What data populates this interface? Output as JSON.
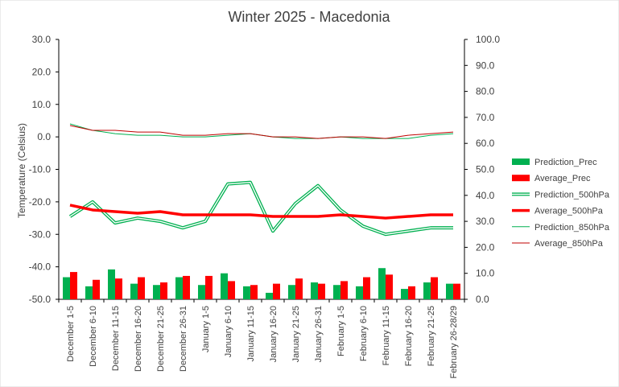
{
  "chart_data": {
    "type": "bar",
    "title": "Winter 2025 - Macedonia",
    "ylabel": "Temperature (Celsius)",
    "ylim": [
      -50,
      30
    ],
    "y_ticks": [
      "30.0",
      "20.0",
      "10.0",
      "0.0",
      "-10.0",
      "-20.0",
      "-30.0",
      "-40.0",
      "-50.0"
    ],
    "y2lim": [
      0,
      100
    ],
    "y2_ticks": [
      "100.0",
      "90.0",
      "80.0",
      "70.0",
      "60.0",
      "50.0",
      "40.0",
      "30.0",
      "20.0",
      "10.0",
      "0.0"
    ],
    "grid": false,
    "legend_position": "right",
    "categories": [
      "December 1-5",
      "December 6-10",
      "December 11-15",
      "December 16-20",
      "December 21-25",
      "December 26-31",
      "January 1-5",
      "January 6-10",
      "January 11-15",
      "January 16-20",
      "January 21-25",
      "January 26-31",
      "February 1-5",
      "February 6-10",
      "February 11-15",
      "February 16-20",
      "February 21-25",
      "February 26-28/29"
    ],
    "series": [
      {
        "name": "Prediction_Prec",
        "kind": "bar",
        "axis": "right",
        "color": "#00b050",
        "values": [
          8.5,
          5.0,
          11.5,
          6.0,
          5.5,
          8.5,
          5.5,
          10.0,
          5.0,
          2.5,
          5.5,
          6.5,
          5.5,
          5.0,
          12.0,
          4.0,
          6.5,
          6.0
        ]
      },
      {
        "name": "Average_Prec",
        "kind": "bar",
        "axis": "right",
        "color": "#ff0000",
        "values": [
          10.5,
          7.5,
          8.0,
          8.5,
          6.5,
          9.0,
          9.0,
          7.0,
          5.5,
          6.0,
          8.0,
          6.0,
          7.0,
          8.5,
          9.5,
          5.0,
          8.5,
          6.0
        ]
      },
      {
        "name": "Prediction_500hPa",
        "kind": "line-double",
        "axis": "left",
        "color": "#00b050",
        "values": [
          -24.5,
          -20.0,
          -26.5,
          -25.0,
          -26.0,
          -28.0,
          -26.0,
          -14.5,
          -14.0,
          -29.0,
          -20.5,
          -15.0,
          -22.5,
          -27.5,
          -30.0,
          -29.0,
          -28.0,
          -28.0
        ]
      },
      {
        "name": "Average_500hPa",
        "kind": "line-thick",
        "axis": "left",
        "color": "#ff0000",
        "values": [
          -21.0,
          -22.5,
          -23.0,
          -23.5,
          -23.0,
          -24.0,
          -24.0,
          -24.0,
          -24.0,
          -24.5,
          -24.5,
          -24.5,
          -24.0,
          -24.5,
          -25.0,
          -24.5,
          -24.0,
          -24.0
        ]
      },
      {
        "name": "Prediction_850hPa",
        "kind": "line",
        "axis": "left",
        "color": "#00b050",
        "values": [
          4.0,
          2.0,
          1.0,
          0.5,
          0.5,
          0.0,
          0.0,
          0.5,
          1.0,
          0.0,
          -0.5,
          -0.5,
          0.0,
          -0.5,
          -0.5,
          -0.5,
          0.5,
          1.0
        ]
      },
      {
        "name": "Average_850hPa",
        "kind": "line",
        "axis": "left",
        "color": "#c00000",
        "values": [
          3.5,
          2.0,
          2.0,
          1.5,
          1.5,
          0.5,
          0.5,
          1.0,
          1.0,
          0.0,
          0.0,
          -0.5,
          0.0,
          0.0,
          -0.5,
          0.5,
          1.0,
          1.5
        ]
      }
    ]
  }
}
